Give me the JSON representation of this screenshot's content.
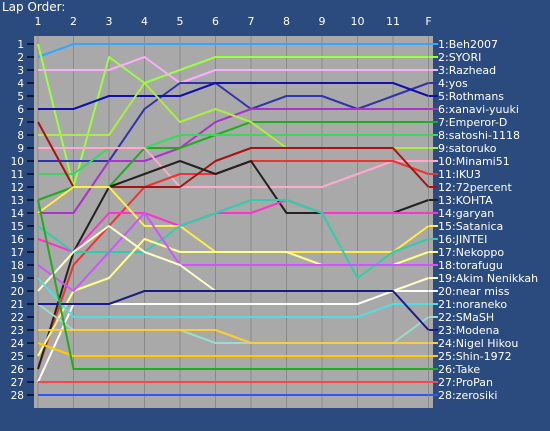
{
  "title": "Lap Order:",
  "colors": {
    "background": "#2b4a7e",
    "plot_area": "#a9a9a9",
    "grid": "#8a8a8a",
    "text": "#ffffff"
  },
  "chart_data": {
    "type": "line",
    "title": "Lap Order:",
    "x_ticks": [
      "1",
      "2",
      "3",
      "4",
      "5",
      "6",
      "7",
      "8",
      "9",
      "10",
      "11",
      "F"
    ],
    "y_ticks": [
      1,
      2,
      3,
      4,
      5,
      6,
      7,
      8,
      9,
      10,
      11,
      12,
      13,
      14,
      15,
      16,
      17,
      18,
      19,
      20,
      21,
      22,
      23,
      24,
      25,
      26,
      27,
      28
    ],
    "y_axis": "position, 1 at top",
    "grid": true,
    "legend": "right, one label per finishing position",
    "series": [
      {
        "name": "1:Beh2007",
        "color": "#33a7ff",
        "positions": [
          2,
          1,
          1,
          1,
          1,
          1,
          1,
          1,
          1,
          1,
          1,
          1
        ]
      },
      {
        "name": "2:SYORI",
        "color": "#99ff44",
        "positions": [
          1,
          12,
          2,
          4,
          3,
          2,
          2,
          2,
          2,
          2,
          2,
          2
        ]
      },
      {
        "name": "3:Razhead",
        "color": "#ffaaff",
        "positions": [
          3,
          3,
          3,
          2,
          4,
          3,
          3,
          3,
          3,
          3,
          3,
          3
        ]
      },
      {
        "name": "4:yos",
        "color": "#3333aa",
        "positions": [
          10,
          10,
          10,
          6,
          4,
          4,
          6,
          5,
          5,
          6,
          5,
          4
        ]
      },
      {
        "name": "5:Rothmans",
        "color": "#1111aa",
        "positions": [
          6,
          6,
          5,
          5,
          5,
          4,
          4,
          4,
          4,
          4,
          4,
          5
        ]
      },
      {
        "name": "6:xanavi-yuuki",
        "color": "#aa33cc",
        "positions": [
          14,
          14,
          10,
          10,
          9,
          7,
          6,
          6,
          6,
          6,
          6,
          6
        ]
      },
      {
        "name": "7:Emperor-D",
        "color": "#22aa22",
        "positions": [
          13,
          12,
          12,
          9,
          9,
          8,
          7,
          7,
          7,
          7,
          7,
          7
        ]
      },
      {
        "name": "8:satoshi-1118",
        "color": "#33dd55",
        "positions": [
          11,
          11,
          9,
          9,
          8,
          8,
          8,
          8,
          8,
          8,
          8,
          8
        ]
      },
      {
        "name": "9:satoruko",
        "color": "#aaee44",
        "positions": [
          8,
          8,
          8,
          4,
          7,
          6,
          7,
          9,
          9,
          9,
          9,
          9
        ]
      },
      {
        "name": "10:Minami51",
        "color": "#ffaacc",
        "positions": [
          9,
          9,
          9,
          9,
          12,
          12,
          12,
          12,
          12,
          11,
          10,
          10
        ]
      },
      {
        "name": "11:IKU3",
        "color": "#ee3333",
        "positions": [
          26,
          18,
          15,
          12,
          11,
          11,
          10,
          10,
          10,
          10,
          10,
          11
        ]
      },
      {
        "name": "12:72percent",
        "color": "#aa1111",
        "positions": [
          7,
          12,
          12,
          12,
          12,
          10,
          9,
          9,
          9,
          9,
          9,
          12
        ]
      },
      {
        "name": "13:KOHTA",
        "color": "#222222",
        "positions": [
          26,
          17,
          12,
          11,
          10,
          11,
          10,
          14,
          14,
          14,
          14,
          13
        ]
      },
      {
        "name": "14:garyan",
        "color": "#ff33cc",
        "positions": [
          16,
          17,
          14,
          14,
          15,
          14,
          14,
          13,
          14,
          14,
          14,
          14
        ]
      },
      {
        "name": "15:Satanica",
        "color": "#ffee44",
        "positions": [
          14,
          12,
          12,
          15,
          15,
          17,
          17,
          17,
          17,
          17,
          17,
          15
        ]
      },
      {
        "name": "16:JINTEI",
        "color": "#33ccaa",
        "positions": [
          15,
          17,
          17,
          17,
          15,
          14,
          13,
          13,
          14,
          19,
          17,
          16
        ]
      },
      {
        "name": "17:Nekoppo",
        "color": "#ffff88",
        "positions": [
          25,
          20,
          19,
          16,
          17,
          17,
          17,
          17,
          18,
          18,
          18,
          17
        ]
      },
      {
        "name": "18:torafugu",
        "color": "#cc55ff",
        "positions": [
          18,
          20,
          17,
          14,
          18,
          18,
          18,
          18,
          18,
          18,
          18,
          18
        ]
      },
      {
        "name": "19:Akim Nenikkah",
        "color": "#ffffcc",
        "positions": [
          20,
          17,
          15,
          17,
          18,
          20,
          20,
          20,
          20,
          20,
          20,
          19
        ]
      },
      {
        "name": "20:near miss",
        "color": "#ffffff",
        "positions": [
          27,
          21,
          21,
          21,
          21,
          21,
          21,
          21,
          21,
          21,
          20,
          20
        ]
      },
      {
        "name": "21:noraneko",
        "color": "#55dddd",
        "positions": [
          19,
          22,
          22,
          22,
          22,
          22,
          22,
          22,
          22,
          22,
          21,
          21
        ]
      },
      {
        "name": "22:SMaSH",
        "color": "#99ddcc",
        "positions": [
          21,
          23,
          23,
          23,
          23,
          24,
          24,
          24,
          24,
          24,
          24,
          22
        ]
      },
      {
        "name": "23:Modena",
        "color": "#1a1a88",
        "positions": [
          21,
          21,
          21,
          20,
          20,
          20,
          20,
          20,
          20,
          20,
          20,
          23
        ]
      },
      {
        "name": "24:Nigel Hikou",
        "color": "#ffcc33",
        "positions": [
          23,
          23,
          23,
          23,
          23,
          23,
          24,
          24,
          24,
          24,
          24,
          24
        ]
      },
      {
        "name": "25:Shin-1972",
        "color": "#ffcc00",
        "positions": [
          24,
          25,
          25,
          25,
          25,
          25,
          25,
          25,
          25,
          25,
          25,
          25
        ]
      },
      {
        "name": "26:Take",
        "color": "#22aa22",
        "positions": [
          13,
          26,
          26,
          26,
          26,
          26,
          26,
          26,
          26,
          26,
          26,
          26
        ]
      },
      {
        "name": "27:ProPan",
        "color": "#ff4444",
        "positions": [
          27,
          27,
          27,
          27,
          27,
          27,
          27,
          27,
          27,
          27,
          27,
          27
        ]
      },
      {
        "name": "28:zerosiki",
        "color": "#3355ff",
        "positions": [
          28,
          28,
          28,
          28,
          28,
          28,
          28,
          28,
          28,
          28,
          28,
          28
        ]
      }
    ]
  }
}
